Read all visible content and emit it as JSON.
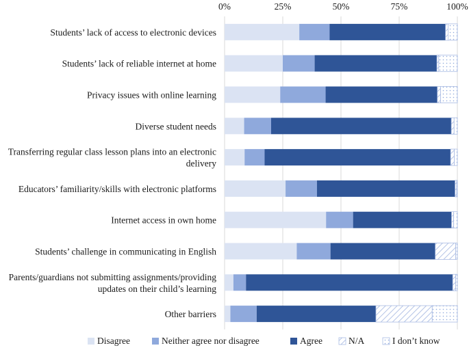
{
  "chart_data": {
    "type": "bar",
    "orientation": "horizontal",
    "stacked": true,
    "percent_scale": true,
    "x_ticks": [
      "0%",
      "25%",
      "50%",
      "75%",
      "100%"
    ],
    "xlim": [
      0,
      100
    ],
    "grid": true,
    "legend_position": "bottom",
    "categories": [
      [
        "Students’ lack of access to electronic devices"
      ],
      [
        "Students’ lack of reliable internet at home"
      ],
      [
        "Privacy issues with online learning"
      ],
      [
        "Diverse student needs"
      ],
      [
        "Transferring regular class lesson plans into an electronic",
        "delivery"
      ],
      [
        "Educators’ familiarity/skills with electronic platforms"
      ],
      [
        "Internet access in own home"
      ],
      [
        "Students’ challenge in communicating in English"
      ],
      [
        "Parents/guardians not submitting assignments/providing",
        "updates on their child’s learning"
      ],
      [
        "Other barriers"
      ]
    ],
    "series": [
      {
        "name": "Disagree",
        "color": "#dbe3f3",
        "pattern": "solid",
        "values": [
          32.1,
          25.0,
          23.9,
          8.4,
          8.6,
          26.2,
          43.6,
          31.0,
          3.8,
          2.5
        ]
      },
      {
        "name": "Neither agree nor disagree",
        "color": "#8fa9dc",
        "pattern": "solid",
        "values": [
          13.0,
          13.7,
          19.5,
          11.6,
          8.6,
          13.5,
          11.6,
          14.5,
          5.4,
          11.3
        ]
      },
      {
        "name": "Agree",
        "color": "#2f5597",
        "pattern": "solid",
        "values": [
          49.8,
          52.5,
          48.0,
          77.4,
          79.9,
          59.3,
          42.3,
          45.0,
          88.8,
          51.2
        ]
      },
      {
        "name": "N/A",
        "color": "#c8d4ee",
        "pattern": "hatch",
        "values": [
          1.1,
          0.8,
          1.4,
          1.2,
          1.6,
          0.7,
          0.9,
          8.8,
          1.3,
          24.2
        ]
      },
      {
        "name": "I don’t know",
        "color": "#c8d4ee",
        "pattern": "dots",
        "values": [
          4.0,
          8.0,
          7.2,
          1.4,
          1.3,
          0.3,
          1.6,
          0.7,
          0.7,
          10.8
        ]
      }
    ]
  }
}
